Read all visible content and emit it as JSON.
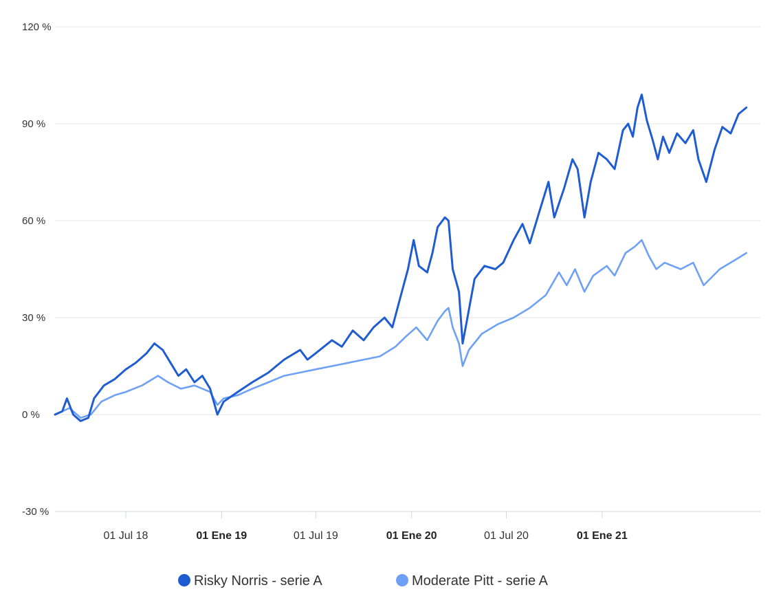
{
  "chart_data": {
    "type": "line",
    "title": "",
    "xlabel": "",
    "ylabel": "",
    "ylim": [
      -30,
      120
    ],
    "xlim": [
      "2018-02-15",
      "2021-11-01"
    ],
    "grid": true,
    "legend_position": "bottom",
    "y_ticks": [
      {
        "value": -30,
        "label": "-30 %"
      },
      {
        "value": 0,
        "label": "0 %"
      },
      {
        "value": 30,
        "label": "30 %"
      },
      {
        "value": 60,
        "label": "60 %"
      },
      {
        "value": 90,
        "label": "90 %"
      },
      {
        "value": 120,
        "label": "120 %"
      }
    ],
    "x_ticks": [
      {
        "date": "2018-07-01",
        "label": "01 Jul 18",
        "bold": false
      },
      {
        "date": "2019-01-01",
        "label": "01 Ene 19",
        "bold": true
      },
      {
        "date": "2019-07-01",
        "label": "01 Jul 19",
        "bold": false
      },
      {
        "date": "2020-01-01",
        "label": "01 Ene 20",
        "bold": true
      },
      {
        "date": "2020-07-01",
        "label": "01 Jul 20",
        "bold": false
      },
      {
        "date": "2021-01-01",
        "label": "01 Ene 21",
        "bold": true
      }
    ],
    "series": [
      {
        "name": "Risky Norris - serie A",
        "color": "#1f5bd1",
        "points": [
          [
            "2018-02-15",
            0
          ],
          [
            "2018-03-01",
            1
          ],
          [
            "2018-03-10",
            5
          ],
          [
            "2018-03-22",
            0
          ],
          [
            "2018-04-05",
            -2
          ],
          [
            "2018-04-20",
            -1
          ],
          [
            "2018-05-01",
            5
          ],
          [
            "2018-05-20",
            9
          ],
          [
            "2018-06-10",
            11
          ],
          [
            "2018-07-01",
            14
          ],
          [
            "2018-07-20",
            16
          ],
          [
            "2018-08-10",
            19
          ],
          [
            "2018-08-25",
            22
          ],
          [
            "2018-09-10",
            20
          ],
          [
            "2018-09-25",
            16
          ],
          [
            "2018-10-10",
            12
          ],
          [
            "2018-10-25",
            14
          ],
          [
            "2018-11-10",
            10
          ],
          [
            "2018-11-25",
            12
          ],
          [
            "2018-12-10",
            8
          ],
          [
            "2018-12-24",
            0
          ],
          [
            "2019-01-05",
            4
          ],
          [
            "2019-02-01",
            7
          ],
          [
            "2019-03-01",
            10
          ],
          [
            "2019-04-01",
            13
          ],
          [
            "2019-05-01",
            17
          ],
          [
            "2019-06-01",
            20
          ],
          [
            "2019-06-15",
            17
          ],
          [
            "2019-07-01",
            19
          ],
          [
            "2019-08-01",
            23
          ],
          [
            "2019-08-20",
            21
          ],
          [
            "2019-09-10",
            26
          ],
          [
            "2019-10-01",
            23
          ],
          [
            "2019-10-20",
            27
          ],
          [
            "2019-11-10",
            30
          ],
          [
            "2019-11-25",
            27
          ],
          [
            "2019-12-10",
            36
          ],
          [
            "2019-12-25",
            45
          ],
          [
            "2020-01-05",
            54
          ],
          [
            "2020-01-15",
            46
          ],
          [
            "2020-01-31",
            44
          ],
          [
            "2020-02-10",
            50
          ],
          [
            "2020-02-20",
            58
          ],
          [
            "2020-03-05",
            61
          ],
          [
            "2020-03-12",
            60
          ],
          [
            "2020-03-20",
            45
          ],
          [
            "2020-04-01",
            38
          ],
          [
            "2020-04-08",
            22
          ],
          [
            "2020-04-15",
            28
          ],
          [
            "2020-05-01",
            42
          ],
          [
            "2020-05-20",
            46
          ],
          [
            "2020-06-10",
            45
          ],
          [
            "2020-06-25",
            47
          ],
          [
            "2020-07-15",
            54
          ],
          [
            "2020-08-01",
            59
          ],
          [
            "2020-08-15",
            53
          ],
          [
            "2020-09-01",
            62
          ],
          [
            "2020-09-20",
            72
          ],
          [
            "2020-10-01",
            61
          ],
          [
            "2020-10-20",
            70
          ],
          [
            "2020-11-05",
            79
          ],
          [
            "2020-11-15",
            76
          ],
          [
            "2020-11-28",
            61
          ],
          [
            "2020-12-10",
            72
          ],
          [
            "2020-12-25",
            81
          ],
          [
            "2021-01-10",
            79
          ],
          [
            "2021-01-25",
            76
          ],
          [
            "2021-02-10",
            88
          ],
          [
            "2021-02-20",
            90
          ],
          [
            "2021-03-01",
            86
          ],
          [
            "2021-03-10",
            95
          ],
          [
            "2021-03-18",
            99
          ],
          [
            "2021-03-28",
            91
          ],
          [
            "2021-04-08",
            85
          ],
          [
            "2021-04-18",
            79
          ],
          [
            "2021-04-28",
            86
          ],
          [
            "2021-05-10",
            81
          ],
          [
            "2021-05-25",
            87
          ],
          [
            "2021-06-10",
            84
          ],
          [
            "2021-06-25",
            88
          ],
          [
            "2021-07-05",
            79
          ],
          [
            "2021-07-20",
            72
          ],
          [
            "2021-08-05",
            82
          ],
          [
            "2021-08-20",
            89
          ],
          [
            "2021-09-05",
            87
          ],
          [
            "2021-09-20",
            93
          ],
          [
            "2021-10-05",
            95
          ]
        ]
      },
      {
        "name": "Moderate Pitt - serie A",
        "color": "#6ea0f5",
        "points": [
          [
            "2018-02-15",
            0
          ],
          [
            "2018-03-01",
            1
          ],
          [
            "2018-03-15",
            2
          ],
          [
            "2018-04-05",
            -1
          ],
          [
            "2018-04-25",
            0
          ],
          [
            "2018-05-15",
            4
          ],
          [
            "2018-06-10",
            6
          ],
          [
            "2018-07-01",
            7
          ],
          [
            "2018-08-01",
            9
          ],
          [
            "2018-09-01",
            12
          ],
          [
            "2018-09-20",
            10
          ],
          [
            "2018-10-15",
            8
          ],
          [
            "2018-11-10",
            9
          ],
          [
            "2018-12-10",
            7
          ],
          [
            "2018-12-24",
            3
          ],
          [
            "2019-01-05",
            5
          ],
          [
            "2019-02-01",
            6
          ],
          [
            "2019-03-01",
            8
          ],
          [
            "2019-04-01",
            10
          ],
          [
            "2019-05-01",
            12
          ],
          [
            "2019-06-01",
            13
          ],
          [
            "2019-07-01",
            14
          ],
          [
            "2019-08-01",
            15
          ],
          [
            "2019-09-01",
            16
          ],
          [
            "2019-10-01",
            17
          ],
          [
            "2019-11-01",
            18
          ],
          [
            "2019-12-01",
            21
          ],
          [
            "2019-12-20",
            24
          ],
          [
            "2020-01-10",
            27
          ],
          [
            "2020-01-31",
            23
          ],
          [
            "2020-02-20",
            29
          ],
          [
            "2020-03-05",
            32
          ],
          [
            "2020-03-12",
            33
          ],
          [
            "2020-03-20",
            27
          ],
          [
            "2020-04-01",
            22
          ],
          [
            "2020-04-08",
            15
          ],
          [
            "2020-04-20",
            20
          ],
          [
            "2020-05-15",
            25
          ],
          [
            "2020-06-15",
            28
          ],
          [
            "2020-07-15",
            30
          ],
          [
            "2020-08-15",
            33
          ],
          [
            "2020-09-15",
            37
          ],
          [
            "2020-10-10",
            44
          ],
          [
            "2020-10-25",
            40
          ],
          [
            "2020-11-10",
            45
          ],
          [
            "2020-11-28",
            38
          ],
          [
            "2020-12-15",
            43
          ],
          [
            "2021-01-10",
            46
          ],
          [
            "2021-01-25",
            43
          ],
          [
            "2021-02-15",
            50
          ],
          [
            "2021-03-05",
            52
          ],
          [
            "2021-03-18",
            54
          ],
          [
            "2021-04-01",
            49
          ],
          [
            "2021-04-15",
            45
          ],
          [
            "2021-05-01",
            47
          ],
          [
            "2021-06-01",
            45
          ],
          [
            "2021-06-25",
            47
          ],
          [
            "2021-07-15",
            40
          ],
          [
            "2021-08-15",
            45
          ],
          [
            "2021-09-15",
            48
          ],
          [
            "2021-10-05",
            50
          ]
        ]
      }
    ]
  }
}
